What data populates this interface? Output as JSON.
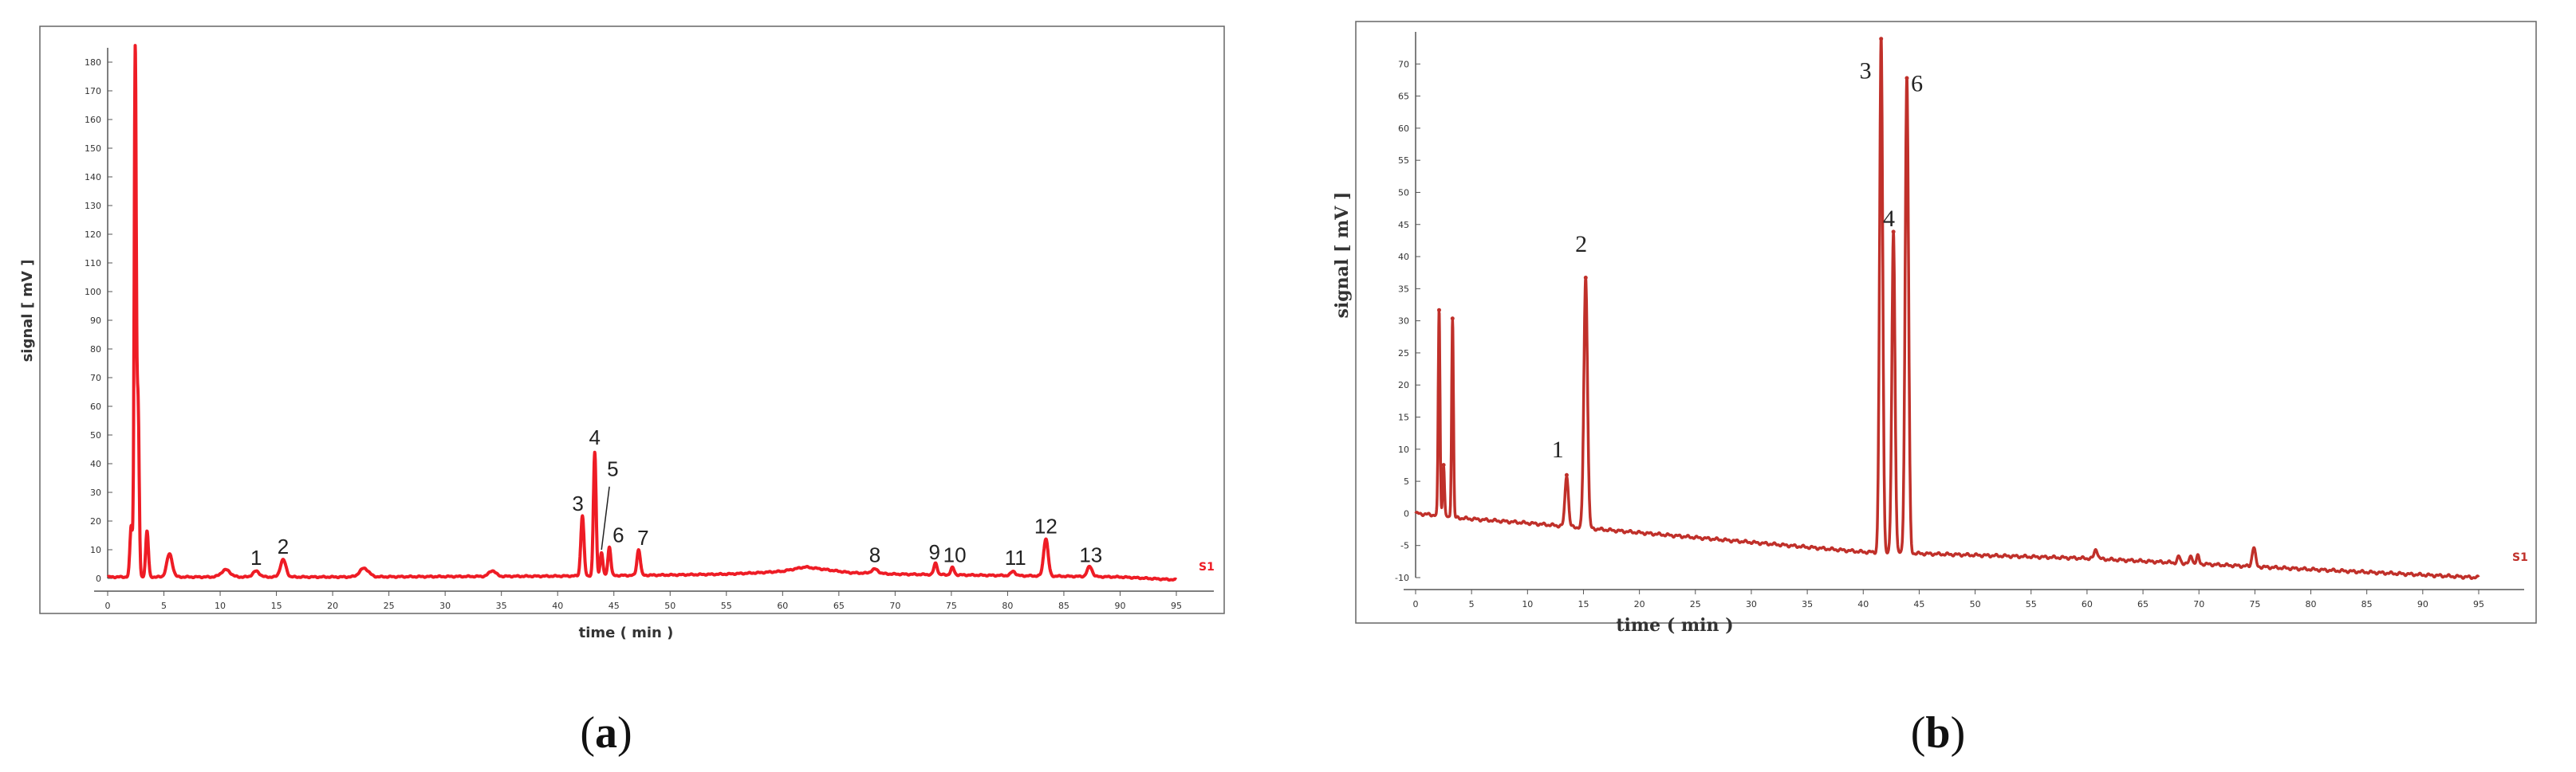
{
  "colors": {
    "trace": "#ee1c25",
    "trace_b": "#c0302a",
    "axis": "#555555",
    "frame": "#666666"
  },
  "chart_data": [
    {
      "type": "line",
      "caption": "a",
      "xlabel": "time ( min )",
      "ylabel": "signal [ mV ]",
      "series_tag": "S1",
      "xlim": [
        0,
        95
      ],
      "ylim": [
        0,
        185
      ],
      "xticks": [
        "0",
        "5",
        "10",
        "15",
        "20",
        "25",
        "30",
        "35",
        "40",
        "45",
        "50",
        "55",
        "60",
        "65",
        "70",
        "75",
        "80",
        "85",
        "90",
        "95"
      ],
      "yticks": [
        "0",
        "10",
        "20",
        "30",
        "40",
        "50",
        "60",
        "70",
        "80",
        "90",
        "100",
        "110",
        "120",
        "130",
        "140",
        "150",
        "160",
        "170",
        "180"
      ],
      "baseline": [
        [
          0,
          0.5
        ],
        [
          20,
          0.5
        ],
        [
          40,
          0.8
        ],
        [
          50,
          1.2
        ],
        [
          55,
          1.5
        ],
        [
          58,
          2
        ],
        [
          60,
          2.5
        ],
        [
          62,
          4
        ],
        [
          64,
          3
        ],
        [
          66,
          2
        ],
        [
          70,
          1.5
        ],
        [
          80,
          1
        ],
        [
          90,
          0.5
        ],
        [
          95,
          -0.5
        ]
      ],
      "peaks": [
        {
          "x": 2.1,
          "h": 18,
          "w": 0.12
        },
        {
          "x": 2.45,
          "h": 183,
          "w": 0.09
        },
        {
          "x": 2.7,
          "h": 60,
          "w": 0.1
        },
        {
          "x": 3.5,
          "h": 16,
          "w": 0.12
        },
        {
          "x": 5.5,
          "h": 8,
          "w": 0.25
        },
        {
          "x": 10.5,
          "h": 2.5,
          "w": 0.4
        },
        {
          "x": 13.2,
          "h": 2,
          "w": 0.3
        },
        {
          "x": 15.6,
          "h": 6,
          "w": 0.25
        },
        {
          "x": 22.8,
          "h": 3,
          "w": 0.4
        },
        {
          "x": 34.2,
          "h": 2,
          "w": 0.3
        },
        {
          "x": 42.2,
          "h": 21,
          "w": 0.14
        },
        {
          "x": 43.3,
          "h": 43,
          "w": 0.12
        },
        {
          "x": 43.9,
          "h": 8,
          "w": 0.12
        },
        {
          "x": 44.6,
          "h": 10,
          "w": 0.13
        },
        {
          "x": 47.2,
          "h": 9,
          "w": 0.15
        },
        {
          "x": 68.2,
          "h": 1.5,
          "w": 0.3
        },
        {
          "x": 73.6,
          "h": 4,
          "w": 0.15
        },
        {
          "x": 75.1,
          "h": 2.5,
          "w": 0.15
        },
        {
          "x": 80.5,
          "h": 1.5,
          "w": 0.2
        },
        {
          "x": 83.4,
          "h": 13,
          "w": 0.2
        },
        {
          "x": 87.3,
          "h": 3.5,
          "w": 0.22
        }
      ],
      "labels": [
        {
          "text": "1",
          "x": 13.2,
          "y": 3
        },
        {
          "text": "2",
          "x": 15.6,
          "y": 7
        },
        {
          "text": "3",
          "x": 41.8,
          "y": 22
        },
        {
          "text": "4",
          "x": 43.3,
          "y": 45
        },
        {
          "text": "5",
          "x": 44.9,
          "y": 34
        },
        {
          "text": "6",
          "x": 45.4,
          "y": 11
        },
        {
          "text": "7",
          "x": 47.6,
          "y": 10
        },
        {
          "text": "8",
          "x": 68.2,
          "y": 4
        },
        {
          "text": "9",
          "x": 73.5,
          "y": 5
        },
        {
          "text": "10",
          "x": 75.3,
          "y": 4
        },
        {
          "text": "11",
          "x": 80.7,
          "y": 3
        },
        {
          "text": "12",
          "x": 83.4,
          "y": 14
        },
        {
          "text": "13",
          "x": 87.4,
          "y": 4
        }
      ]
    },
    {
      "type": "line",
      "caption": "b",
      "xlabel": "time ( min )",
      "ylabel": "signal [ mV ]",
      "series_tag": "S1",
      "xlim": [
        0,
        95
      ],
      "ylim": [
        -10,
        75
      ],
      "xticks": [
        "0",
        "5",
        "10",
        "15",
        "20",
        "25",
        "30",
        "35",
        "40",
        "45",
        "50",
        "55",
        "60",
        "65",
        "70",
        "75",
        "80",
        "85",
        "90",
        "95"
      ],
      "yticks": [
        "-10",
        "-5",
        "0",
        "5",
        "10",
        "15",
        "20",
        "25",
        "30",
        "35",
        "40",
        "45",
        "50",
        "55",
        "60",
        "65",
        "70"
      ],
      "baseline": [
        [
          0,
          0
        ],
        [
          2,
          -0.3
        ],
        [
          3,
          -0.6
        ],
        [
          10,
          -1.5
        ],
        [
          40,
          -6
        ],
        [
          60,
          -7
        ],
        [
          95,
          -10
        ]
      ],
      "peaks": [
        {
          "x": 2.1,
          "h": 32,
          "w": 0.08
        },
        {
          "x": 2.5,
          "h": 8,
          "w": 0.08
        },
        {
          "x": 3.3,
          "h": 31,
          "w": 0.08
        },
        {
          "x": 13.5,
          "h": 8,
          "w": 0.15
        },
        {
          "x": 15.2,
          "h": 39,
          "w": 0.16
        },
        {
          "x": 41.6,
          "h": 80,
          "w": 0.14
        },
        {
          "x": 42.7,
          "h": 50,
          "w": 0.14
        },
        {
          "x": 43.9,
          "h": 74,
          "w": 0.15
        },
        {
          "x": 60.8,
          "h": 1.5,
          "w": 0.15
        },
        {
          "x": 68.2,
          "h": 1,
          "w": 0.12
        },
        {
          "x": 69.3,
          "h": 1.2,
          "w": 0.12
        },
        {
          "x": 69.9,
          "h": 1.2,
          "w": 0.12
        },
        {
          "x": 74.9,
          "h": 3,
          "w": 0.15
        }
      ],
      "labels": [
        {
          "text": "1",
          "x": 12.7,
          "y": 8
        },
        {
          "text": "2",
          "x": 14.8,
          "y": 40
        },
        {
          "text": "3",
          "x": 40.2,
          "y": 67
        },
        {
          "text": "4",
          "x": 42.3,
          "y": 44
        },
        {
          "text": "6",
          "x": 44.8,
          "y": 65
        }
      ]
    }
  ]
}
